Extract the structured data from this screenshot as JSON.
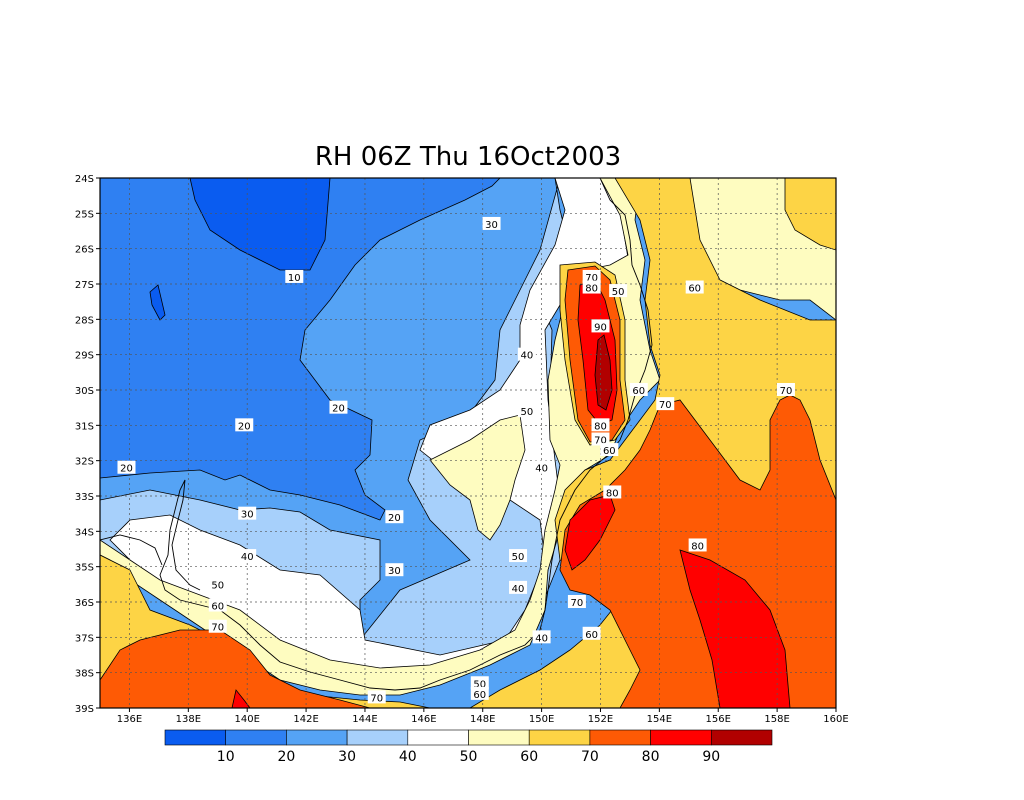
{
  "chart_data": {
    "type": "heatmap",
    "title": "RH 06Z Thu 16Oct2003",
    "x_ticks": [
      "136E",
      "138E",
      "140E",
      "142E",
      "144E",
      "146E",
      "148E",
      "150E",
      "152E",
      "154E",
      "156E",
      "158E",
      "160E"
    ],
    "y_ticks": [
      "24S",
      "25S",
      "26S",
      "27S",
      "28S",
      "29S",
      "30S",
      "31S",
      "32S",
      "33S",
      "34S",
      "35S",
      "36S",
      "37S",
      "38S",
      "39S"
    ],
    "xlim": [
      135,
      160
    ],
    "ylim": [
      -39,
      -24
    ],
    "grid": true,
    "legend_position": "bottom",
    "colorbar": {
      "levels": [
        10,
        20,
        30,
        40,
        50,
        60,
        70,
        80,
        90
      ],
      "colors": [
        "#0a5cf0",
        "#2f80f2",
        "#55a3f5",
        "#a7d0fb",
        "#ffffff",
        "#fefcc0",
        "#fdd445",
        "#fe5a05",
        "#ff0000",
        "#b10000"
      ]
    },
    "contour_labels": [
      {
        "text": "30",
        "lon": 148.3,
        "lat": -25.3
      },
      {
        "text": "10",
        "lon": 141.6,
        "lat": -26.8
      },
      {
        "text": "70",
        "lon": 151.7,
        "lat": -26.8
      },
      {
        "text": "80",
        "lon": 151.7,
        "lat": -27.1
      },
      {
        "text": "50",
        "lon": 152.6,
        "lat": -27.2
      },
      {
        "text": "60",
        "lon": 155.2,
        "lat": -27.1
      },
      {
        "text": "90",
        "lon": 152.0,
        "lat": -28.2
      },
      {
        "text": "40",
        "lon": 149.5,
        "lat": -29.0
      },
      {
        "text": "60",
        "lon": 153.3,
        "lat": -30.0
      },
      {
        "text": "70",
        "lon": 158.3,
        "lat": -30.0
      },
      {
        "text": "20",
        "lon": 143.1,
        "lat": -30.5
      },
      {
        "text": "70",
        "lon": 154.2,
        "lat": -30.4
      },
      {
        "text": "50",
        "lon": 149.5,
        "lat": -30.6
      },
      {
        "text": "20",
        "lon": 139.9,
        "lat": -31.0
      },
      {
        "text": "80",
        "lon": 152.0,
        "lat": -31.0
      },
      {
        "text": "70",
        "lon": 152.0,
        "lat": -31.4
      },
      {
        "text": "60",
        "lon": 152.3,
        "lat": -31.7
      },
      {
        "text": "40",
        "lon": 150.0,
        "lat": -32.2
      },
      {
        "text": "20",
        "lon": 135.9,
        "lat": -32.2
      },
      {
        "text": "80",
        "lon": 152.4,
        "lat": -32.9
      },
      {
        "text": "30",
        "lon": 140.0,
        "lat": -33.5
      },
      {
        "text": "20",
        "lon": 145.0,
        "lat": -33.6
      },
      {
        "text": "80",
        "lon": 155.3,
        "lat": -34.4
      },
      {
        "text": "40",
        "lon": 140.0,
        "lat": -34.7
      },
      {
        "text": "50",
        "lon": 149.2,
        "lat": -34.7
      },
      {
        "text": "30",
        "lon": 145.0,
        "lat": -35.1
      },
      {
        "text": "50",
        "lon": 139.0,
        "lat": -35.5
      },
      {
        "text": "40",
        "lon": 149.2,
        "lat": -35.6
      },
      {
        "text": "70",
        "lon": 151.2,
        "lat": -36.0
      },
      {
        "text": "60",
        "lon": 139.0,
        "lat": -36.1
      },
      {
        "text": "60",
        "lon": 151.7,
        "lat": -36.9
      },
      {
        "text": "40",
        "lon": 150.0,
        "lat": -37.0
      },
      {
        "text": "70",
        "lon": 139.0,
        "lat": -36.7
      },
      {
        "text": "50",
        "lon": 147.9,
        "lat": -38.3
      },
      {
        "text": "60",
        "lon": 147.9,
        "lat": -38.6
      },
      {
        "text": "70",
        "lon": 144.4,
        "lat": -38.7
      }
    ]
  }
}
